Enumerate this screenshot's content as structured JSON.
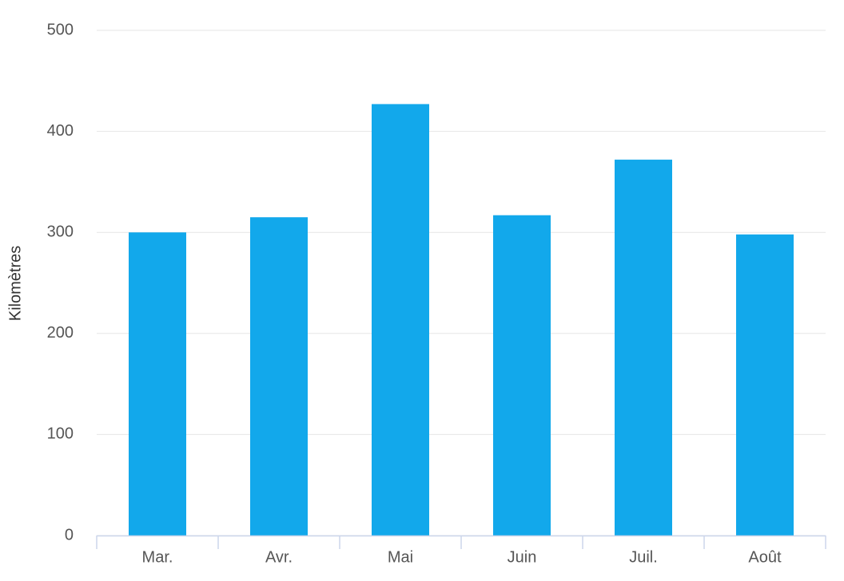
{
  "chart_data": {
    "type": "bar",
    "y_label": "Kilomètres",
    "categories": [
      "Mar.",
      "Avr.",
      "Mai",
      "Juin",
      "Juil.",
      "Août"
    ],
    "values": [
      300,
      315,
      427,
      317,
      372,
      298
    ],
    "color": "#12a8eb",
    "ylim": [
      0,
      500
    ],
    "yticks": [
      0,
      100,
      200,
      300,
      400,
      500
    ],
    "grid": true
  }
}
